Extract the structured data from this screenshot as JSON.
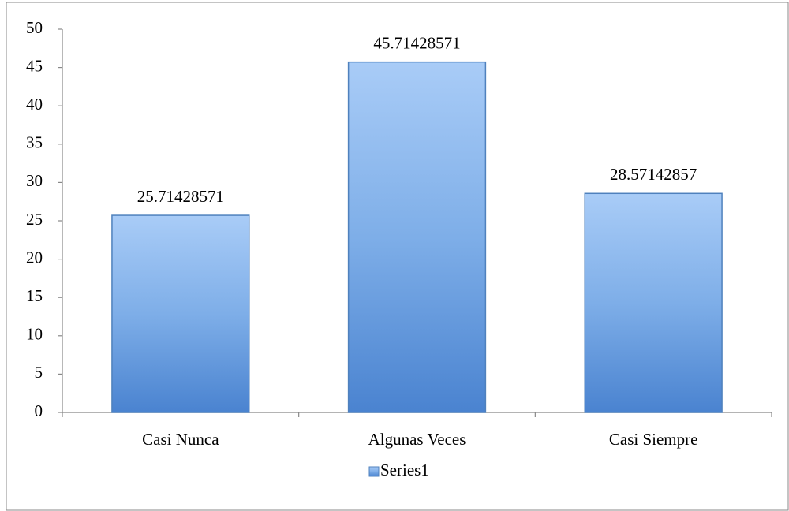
{
  "chart_data": {
    "type": "bar",
    "categories": [
      "Casi Nunca",
      "Algunas Veces",
      "Casi Siempre"
    ],
    "series": [
      {
        "name": "Series1",
        "color": "#4f81bd",
        "values": [
          25.71428571,
          45.71428571,
          28.57142857
        ]
      }
    ],
    "ylim": [
      0,
      50
    ],
    "yticks": [
      0,
      5,
      10,
      15,
      20,
      25,
      30,
      35,
      40,
      45,
      50
    ],
    "grid": false,
    "legend": "bottom"
  }
}
